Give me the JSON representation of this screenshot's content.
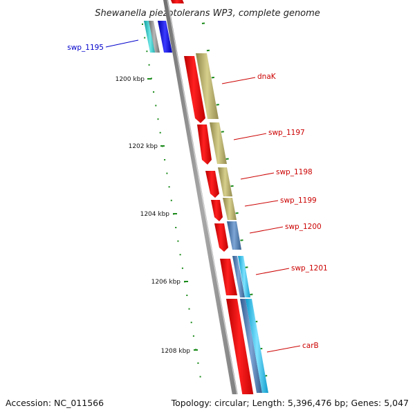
{
  "title": "Shewanella piezotolerans WP3, complete genome",
  "footer": {
    "accession": "Accession: NC_011566",
    "summary": "Topology: circular; Length: 5,396,476 bp; Genes: 5,047"
  },
  "ruler": {
    "labels": [
      "1200 kbp",
      "1202 kbp",
      "1204 kbp",
      "1206 kbp",
      "1208 kbp"
    ]
  },
  "gene_labels": [
    {
      "name": "swp_1195",
      "color": "#0000cc"
    },
    {
      "name": "dnaK",
      "color": "#cc0000"
    },
    {
      "name": "swp_1197",
      "color": "#cc0000"
    },
    {
      "name": "swp_1198",
      "color": "#cc0000"
    },
    {
      "name": "swp_1199",
      "color": "#cc0000"
    },
    {
      "name": "swp_1200",
      "color": "#cc0000"
    },
    {
      "name": "swp_1201",
      "color": "#cc0000"
    },
    {
      "name": "carB",
      "color": "#cc0000"
    }
  ],
  "colors": {
    "backbone": "#8a8a8a",
    "forward_strand": "#ee1111",
    "cog_khaki": "#bdb56e",
    "cog_steelblue": "#4f7fb8",
    "cog_cyan": "#22c4ee",
    "cog_blue": "#0000ee",
    "cog_teal": "#22c8c8",
    "ruler": "#1a8a1a"
  }
}
